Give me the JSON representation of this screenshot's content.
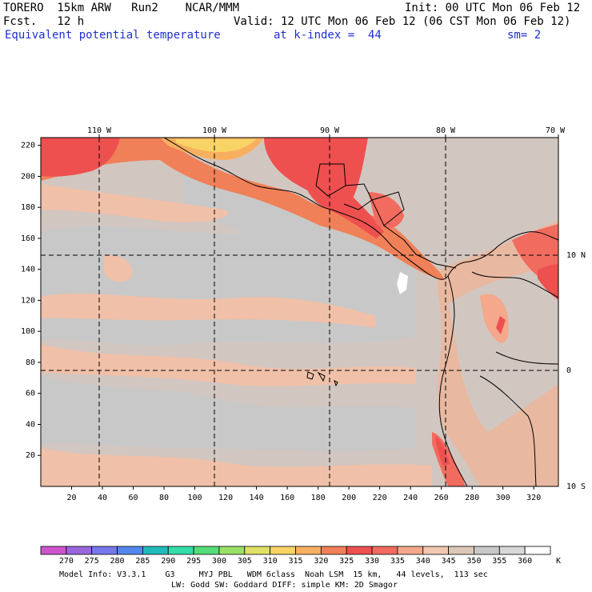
{
  "header": {
    "model": "TORERO  15km ARW   Run2    NCAR/MMM",
    "init": "Init: 00 UTC Mon 06 Feb 12",
    "fcst": "Fcst.   12 h",
    "valid": "Valid: 12 UTC Mon 06 Feb 12 (06 CST Mon 06 Feb 12)",
    "field": "Equivalent potential temperature",
    "level": "at k-index =  44",
    "smooth": "sm= 2"
  },
  "lon_labels": [
    "110 W",
    "100 W",
    "90 W",
    "80 W",
    "70 W"
  ],
  "lat_labels": [
    "10 N",
    "0",
    "10 S"
  ],
  "y_ticks": [
    "20",
    "40",
    "60",
    "80",
    "100",
    "120",
    "140",
    "160",
    "180",
    "200",
    "220"
  ],
  "x_ticks": [
    "20",
    "40",
    "60",
    "80",
    "100",
    "120",
    "140",
    "160",
    "180",
    "200",
    "220",
    "240",
    "260",
    "280",
    "300",
    "320"
  ],
  "colorbar": {
    "colors": [
      "#cc55cc",
      "#9966dd",
      "#7777ee",
      "#5588ee",
      "#22bbbb",
      "#33ddaa",
      "#55dd77",
      "#99e066",
      "#dfe066",
      "#f8d466",
      "#f8b060",
      "#f08058",
      "#ee5050",
      "#f26b5f",
      "#f4a88c",
      "#f2c8b0",
      "#ddc8b8",
      "#c8c8c8",
      "#d8d8d8",
      "#ffffff"
    ],
    "labels": [
      "270",
      "275",
      "280",
      "285",
      "290",
      "295",
      "300",
      "305",
      "310",
      "315",
      "320",
      "325",
      "330",
      "335",
      "340",
      "345",
      "350",
      "355",
      "360"
    ],
    "unit": "K"
  },
  "footer": {
    "line1": "Model Info: V3.3.1    G3     MYJ PBL   WDM 6class  Noah LSM  15 km,   44 levels,  113 sec",
    "line2": "LW: Godd SW: Goddard DIFF: simple KM: 2D Smagor"
  }
}
